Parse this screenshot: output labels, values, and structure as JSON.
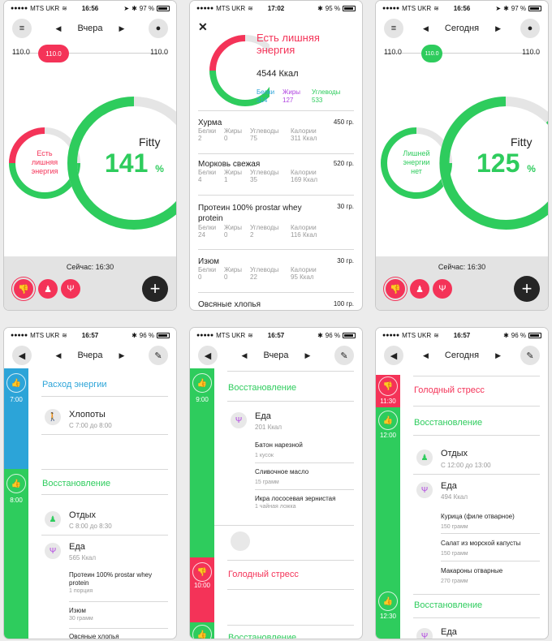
{
  "status": {
    "carrier": "MTS UKR",
    "screens": [
      {
        "time": "16:56",
        "battery": "97 %"
      },
      {
        "time": "17:02",
        "battery": "95 %"
      },
      {
        "time": "16:56",
        "battery": "97 %"
      },
      {
        "time": "16:57",
        "battery": "96 %"
      },
      {
        "time": "16:57",
        "battery": "96 %"
      },
      {
        "time": "16:57",
        "battery": "96 %"
      }
    ]
  },
  "colors": {
    "green": "#2ecc5d",
    "red": "#f43358",
    "blue": "#2ca4d8",
    "purple": "#b044e0"
  },
  "s1": {
    "day": "Вчера",
    "slider_left": "110.0",
    "slider_value": "110.0",
    "slider_right": "110.0",
    "small_ring_text": "Есть лишняя энергия",
    "title": "Fitty",
    "percent": "141",
    "percent_sign": "%",
    "now": "Сейчас: 16:30"
  },
  "s2": {
    "title": "Есть лишняя энергия",
    "kcal": "4544 Ккал",
    "macros": [
      {
        "label": "Белки",
        "value": "314"
      },
      {
        "label": "Жиры",
        "value": "127"
      },
      {
        "label": "Углеводы",
        "value": "533"
      }
    ],
    "col_labels": [
      "Белки",
      "Жиры",
      "Углеводы",
      "Калории"
    ],
    "foods": [
      {
        "name": "Хурма",
        "grams": "450 гр.",
        "values": [
          "2",
          "0",
          "75",
          "311 Ккал"
        ]
      },
      {
        "name": "Морковь свежая",
        "grams": "520 гр.",
        "values": [
          "4",
          "1",
          "35",
          "169 Ккал"
        ]
      },
      {
        "name": "Протеин 100% prostar whey protein",
        "grams": "30 гр.",
        "values": [
          "24",
          "0",
          "2",
          "116 Ккал"
        ]
      },
      {
        "name": "Изюм",
        "grams": "30 гр.",
        "values": [
          "0",
          "0",
          "22",
          "95 Ккал"
        ]
      },
      {
        "name": "Овсяные хлопья",
        "grams": "100 гр."
      }
    ]
  },
  "s3": {
    "day": "Сегодня",
    "slider_left": "110.0",
    "slider_value": "110.0",
    "slider_right": "110.0",
    "small_ring_text": "Лишней энергии нет",
    "title": "Fitty",
    "percent": "125",
    "percent_sign": "%",
    "now": "Сейчас: 16:30"
  },
  "s4": {
    "day": "Вчера",
    "block1": {
      "time": "7:00",
      "title": "Расход энергии",
      "event": "Хлопоты",
      "event_sub": "С 7:00 до 8:00"
    },
    "block2": {
      "time": "8:00",
      "title": "Восстановление",
      "rest": "Отдых",
      "rest_sub": "С 8:00 до 8:30",
      "food": "Еда",
      "food_sub": "565 Ккал",
      "items": [
        {
          "name": "Протеин 100% prostar whey protein",
          "qty": "1 порция"
        },
        {
          "name": "Изюм",
          "qty": "30 грамм"
        },
        {
          "name": "Овсяные хлопья"
        }
      ]
    }
  },
  "s5": {
    "day": "Вчера",
    "block1": {
      "time": "9:00",
      "title": "Восстановление",
      "food": "Еда",
      "food_sub": "201 Ккал",
      "items": [
        {
          "name": "Батон нарезной",
          "qty": "1 кусок"
        },
        {
          "name": "Сливочное масло",
          "qty": "15 грамм"
        },
        {
          "name": "Икра лососевая зернистая",
          "qty": "1 чайная ложка"
        }
      ]
    },
    "block2": {
      "time": "10:00",
      "title": "Голодный стресс"
    },
    "block3": {
      "title": "Восстановление"
    }
  },
  "s6": {
    "day": "Сегодня",
    "block1": {
      "time": "11:30",
      "title": "Голодный стресс"
    },
    "block2": {
      "time": "12:00",
      "title": "Восстановление",
      "rest": "Отдых",
      "rest_sub": "С 12:00 до 13:00",
      "food": "Еда",
      "food_sub": "494 Ккал",
      "items": [
        {
          "name": "Курица (филе отварное)",
          "qty": "150 грамм"
        },
        {
          "name": "Салат из морской капусты",
          "qty": "150 грамм"
        },
        {
          "name": "Макароны отварные",
          "qty": "270 грамм"
        }
      ]
    },
    "block3": {
      "time": "12:30",
      "title": "Восстановление",
      "food": "Еда"
    }
  }
}
